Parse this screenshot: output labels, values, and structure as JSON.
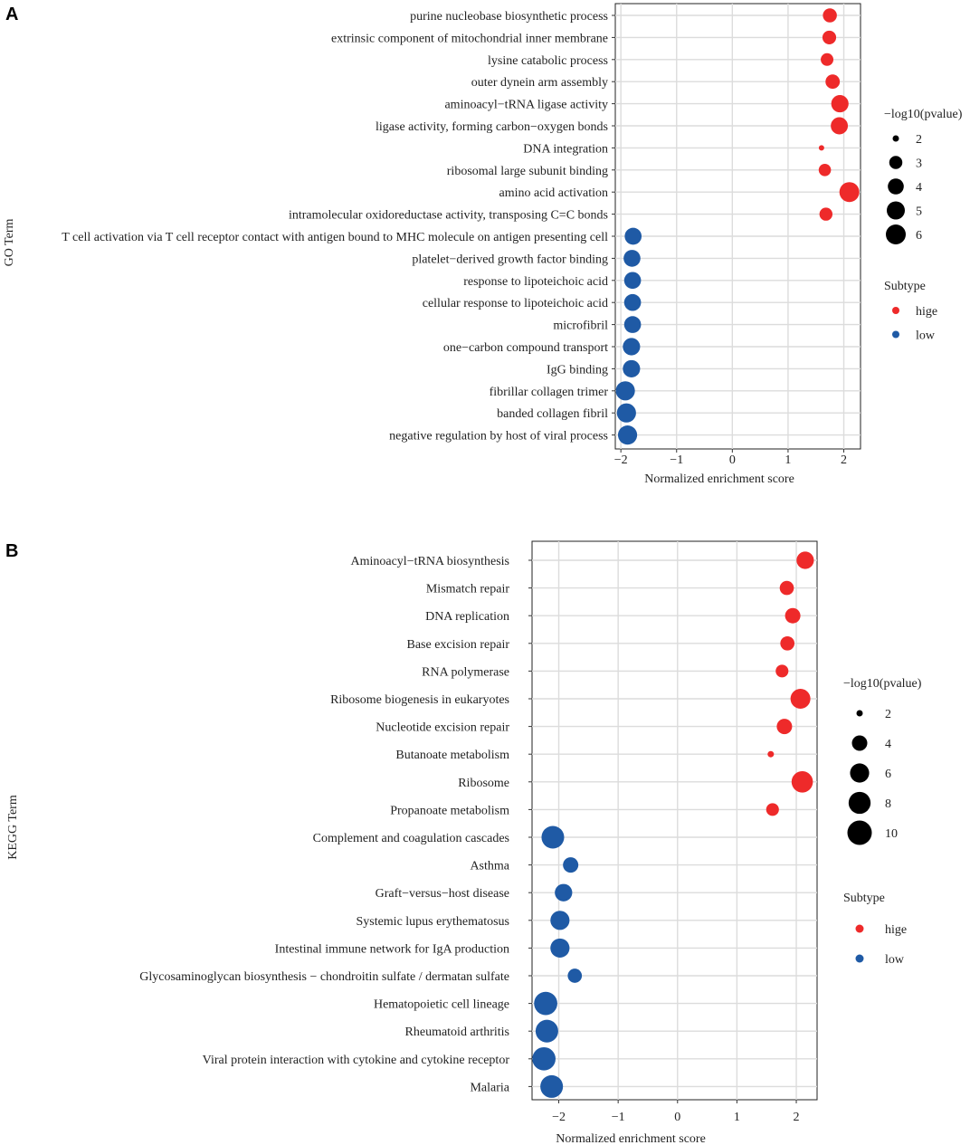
{
  "chart_data": [
    {
      "type": "scatter",
      "panel_label": "A",
      "xlabel": "Normalized enrichment score",
      "ylabel": "GO Term",
      "xlim": [
        -2.1,
        2.3
      ],
      "xticks": [
        "−2",
        "−1",
        "0",
        "1",
        "2"
      ],
      "xtick_values": [
        -2,
        -1,
        0,
        1,
        2
      ],
      "grid": true,
      "size_legend": {
        "title": "−log10(pvalue)",
        "labels": [
          "2",
          "3",
          "4",
          "5",
          "6"
        ],
        "values": [
          2,
          3,
          4,
          5,
          6
        ]
      },
      "color_legend": {
        "title": "Subtype",
        "labels": [
          "hige",
          "low"
        ],
        "colors": [
          "#ee2a2a",
          "#1f5aa5"
        ]
      },
      "terms": [
        "purine nucleobase biosynthetic process",
        "extrinsic component of mitochondrial inner membrane",
        "lysine catabolic process",
        "outer dynein arm assembly",
        "aminoacyl−tRNA ligase activity",
        "ligase activity, forming carbon−oxygen bonds",
        "DNA integration",
        "ribosomal large subunit binding",
        "amino acid activation",
        "intramolecular oxidoreductase activity, transposing C=C bonds",
        "T cell activation via T cell receptor contact with antigen bound to MHC molecule on antigen presenting cell",
        "platelet−derived growth factor binding",
        "response to lipoteichoic acid",
        "cellular response to lipoteichoic acid",
        "microfibril",
        "one−carbon compound transport",
        "IgG binding",
        "fibrillar collagen trimer",
        "banded collagen fibril",
        "negative regulation by host of viral process"
      ],
      "nes": [
        1.75,
        1.74,
        1.7,
        1.8,
        1.93,
        1.92,
        1.6,
        1.66,
        2.1,
        1.68,
        -1.78,
        -1.8,
        -1.79,
        -1.79,
        -1.79,
        -1.81,
        -1.81,
        -1.92,
        -1.9,
        -1.88
      ],
      "neglog10p": [
        3.4,
        3.3,
        3.0,
        3.5,
        4.7,
        4.6,
        1.5,
        2.9,
        6.0,
        3.1,
        4.5,
        4.5,
        4.5,
        4.5,
        4.5,
        4.7,
        4.7,
        5.6,
        5.6,
        5.6
      ],
      "subtype": [
        "hige",
        "hige",
        "hige",
        "hige",
        "hige",
        "hige",
        "hige",
        "hige",
        "hige",
        "hige",
        "low",
        "low",
        "low",
        "low",
        "low",
        "low",
        "low",
        "low",
        "low",
        "low"
      ]
    },
    {
      "type": "scatter",
      "panel_label": "B",
      "xlabel": "Normalized enrichment score",
      "ylabel": "KEGG Term",
      "xlim": [
        -2.45,
        2.35
      ],
      "xticks": [
        "−2",
        "−1",
        "0",
        "1",
        "2"
      ],
      "xtick_values": [
        -2,
        -1,
        0,
        1,
        2
      ],
      "grid": true,
      "size_legend": {
        "title": "−log10(pvalue)",
        "labels": [
          "2",
          "4",
          "6",
          "8",
          "10"
        ],
        "values": [
          2,
          4,
          6,
          8,
          10
        ]
      },
      "color_legend": {
        "title": "Subtype",
        "labels": [
          "hige",
          "low"
        ],
        "colors": [
          "#ee2a2a",
          "#1f5aa5"
        ]
      },
      "terms": [
        "Aminoacyl−tRNA biosynthesis",
        "Mismatch repair",
        "DNA replication",
        "Base excision repair",
        "RNA polymerase",
        "Ribosome biogenesis in eukaryotes",
        "Nucleotide excision repair",
        "Butanoate metabolism",
        "Ribosome",
        "Propanoate metabolism",
        "Complement and coagulation cascades",
        "Asthma",
        "Graft−versus−host disease",
        "Systemic lupus erythematosus",
        "Intestinal immune network for IgA production",
        "Glycosaminoglycan biosynthesis − chondroitin sulfate / dermatan sulfate",
        "Hematopoietic cell lineage",
        "Rheumatoid arthritis",
        "Viral protein interaction with cytokine and cytokine receptor",
        "Malaria"
      ],
      "nes": [
        2.15,
        1.84,
        1.94,
        1.85,
        1.76,
        2.07,
        1.8,
        1.57,
        2.1,
        1.6,
        -2.1,
        -1.8,
        -1.92,
        -1.98,
        -1.98,
        -1.73,
        -2.22,
        -2.2,
        -2.25,
        -2.12
      ],
      "neglog10p": [
        5.0,
        3.5,
        4.0,
        3.5,
        3.0,
        6.5,
        4.0,
        1.4,
        7.5,
        3.0,
        8.5,
        4.0,
        5.0,
        6.0,
        6.0,
        3.5,
        9.0,
        8.5,
        9.0,
        8.5
      ],
      "subtype": [
        "hige",
        "hige",
        "hige",
        "hige",
        "hige",
        "hige",
        "hige",
        "hige",
        "hige",
        "hige",
        "low",
        "low",
        "low",
        "low",
        "low",
        "low",
        "low",
        "low",
        "low",
        "low"
      ]
    }
  ]
}
